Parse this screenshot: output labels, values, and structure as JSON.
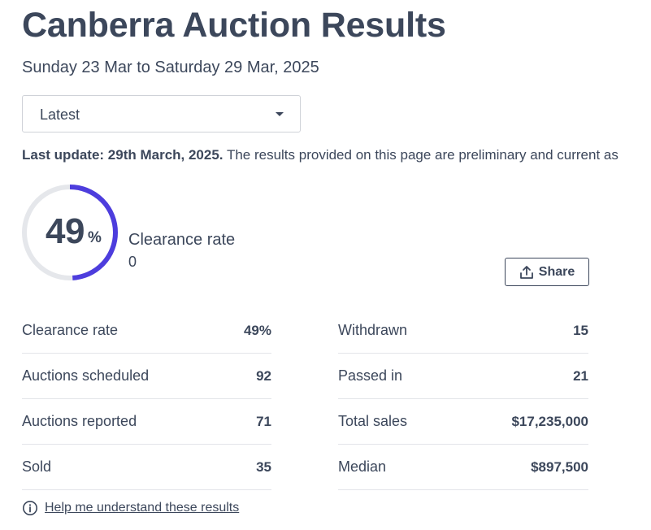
{
  "page": {
    "title": "Canberra Auction Results",
    "date_range": "Sunday 23 Mar to Saturday 29 Mar, 2025"
  },
  "selector": {
    "value": "Latest",
    "icon": "caret-down-icon"
  },
  "update": {
    "label": "Last update: 29th March, 2025.",
    "text": " The results provided on this page are preliminary and current as"
  },
  "summary": {
    "rate_number": "49",
    "rate_symbol": "%",
    "rate_fraction": 0.49,
    "label": "Clearance rate",
    "sub_value": "0",
    "ring_color": "#4d3ddd",
    "track_color": "#e5e7eb"
  },
  "share": {
    "label": "Share",
    "icon": "share-upload-icon"
  },
  "stats_left": [
    {
      "label": "Clearance rate",
      "value": "49%"
    },
    {
      "label": "Auctions scheduled",
      "value": "92"
    },
    {
      "label": "Auctions reported",
      "value": "71"
    },
    {
      "label": "Sold",
      "value": "35"
    }
  ],
  "stats_right": [
    {
      "label": "Withdrawn",
      "value": "15"
    },
    {
      "label": "Passed in",
      "value": "21"
    },
    {
      "label": "Total sales",
      "value": "$17,235,000"
    },
    {
      "label": "Median",
      "value": "$897,500"
    }
  ],
  "help": {
    "label": "Help me understand these results",
    "icon": "info-icon"
  }
}
